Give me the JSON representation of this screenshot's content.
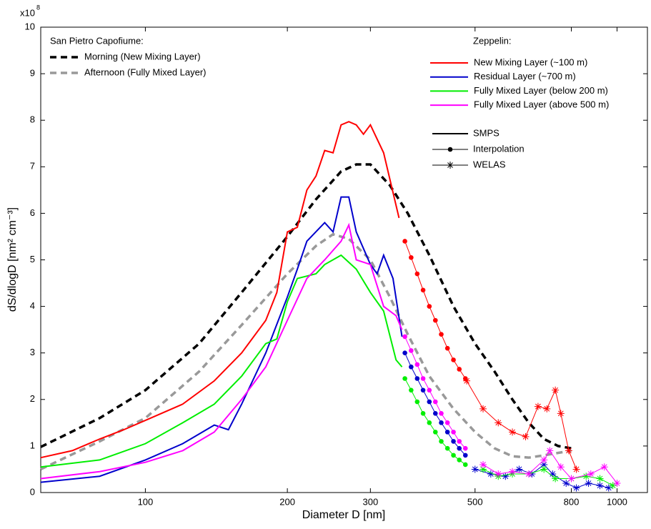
{
  "chart_data": {
    "type": "line",
    "xlabel": "Diameter D [nm]",
    "ylabel": "dS/dlogD [nm² cm⁻³]",
    "y_multiplier": "x10",
    "y_multiplier_exponent": "8",
    "xscale": "log",
    "xlim": [
      60,
      1160
    ],
    "ylim": [
      0,
      10
    ],
    "xticks": [
      100,
      200,
      300,
      500,
      800,
      1000
    ],
    "yticks": [
      0,
      1,
      2,
      3,
      4,
      5,
      6,
      7,
      8,
      9,
      10
    ],
    "legend_titles": [
      "San Pietro Capofiume:",
      "Zeppelin:"
    ],
    "methods": [
      "SMPS",
      "Interpolation",
      "WELAS"
    ],
    "series": [
      {
        "name": "Morning (New Mixing Layer)",
        "color": "#000000",
        "dash": true,
        "legend_group": 0,
        "parts": [
          {
            "x": [
              60,
              80,
              100,
              130,
              160,
              200,
              230,
              260,
              280,
              300,
              330,
              360,
              400,
              450,
              500,
              550,
              600,
              650,
              700,
              750,
              800
            ],
            "values": [
              0.98,
              1.6,
              2.2,
              3.2,
              4.3,
              5.5,
              6.3,
              6.9,
              7.05,
              7.05,
              6.6,
              6.0,
              5.1,
              4.0,
              3.2,
              2.6,
              2.0,
              1.5,
              1.15,
              1.0,
              0.95
            ]
          }
        ]
      },
      {
        "name": "Afternoon (Fully Mixed Layer)",
        "color": "#999999",
        "dash": true,
        "legend_group": 0,
        "parts": [
          {
            "x": [
              60,
              80,
              100,
              130,
              160,
              200,
              230,
              250,
              270,
              300,
              330,
              360,
              400,
              450,
              500,
              550,
              600,
              650,
              700,
              800
            ],
            "values": [
              0.5,
              1.1,
              1.6,
              2.6,
              3.6,
              4.7,
              5.3,
              5.55,
              5.45,
              5.0,
              4.2,
              3.4,
              2.5,
              1.8,
              1.3,
              0.95,
              0.78,
              0.75,
              0.8,
              0.9
            ]
          }
        ]
      },
      {
        "name": "New Mixing Layer (~100 m)",
        "color": "#ff0000",
        "dash": false,
        "legend_group": 1,
        "parts": [
          {
            "x": [
              60,
              70,
              80,
              90,
              100,
              120,
              140,
              160,
              180,
              190,
              200,
              210,
              220,
              230,
              240,
              250,
              260,
              270,
              280,
              290,
              300,
              320,
              345
            ],
            "values": [
              0.75,
              0.9,
              1.15,
              1.35,
              1.55,
              1.9,
              2.4,
              3.0,
              3.7,
              4.3,
              5.6,
              5.7,
              6.5,
              6.8,
              7.35,
              7.3,
              7.9,
              7.97,
              7.9,
              7.7,
              7.9,
              7.3,
              5.9
            ]
          },
          {
            "x": [
              355,
              366,
              377,
              388,
              400,
              412,
              424,
              437,
              450,
              463,
              477
            ],
            "values": [
              5.4,
              5.05,
              4.7,
              4.35,
              4.0,
              3.7,
              3.4,
              3.1,
              2.85,
              2.65,
              2.45
            ]
          },
          {
            "x": [
              480,
              520,
              560,
              600,
              640,
              680,
              710,
              740,
              760,
              790,
              820
            ],
            "values": [
              2.4,
              1.8,
              1.5,
              1.3,
              1.2,
              1.85,
              1.8,
              2.2,
              1.7,
              0.9,
              0.5
            ]
          }
        ]
      },
      {
        "name": "Residual Layer    (~700 m)",
        "color": "#0000cc",
        "dash": false,
        "legend_group": 1,
        "parts": [
          {
            "x": [
              60,
              80,
              100,
              120,
              140,
              150,
              160,
              180,
              200,
              210,
              220,
              240,
              250,
              260,
              270,
              280,
              300,
              310,
              320,
              335,
              350
            ],
            "values": [
              0.22,
              0.35,
              0.7,
              1.05,
              1.45,
              1.35,
              1.9,
              3.0,
              4.2,
              4.8,
              5.4,
              5.8,
              5.6,
              6.35,
              6.35,
              5.6,
              4.9,
              4.7,
              5.1,
              4.6,
              3.35
            ]
          },
          {
            "x": [
              355,
              366,
              377,
              388,
              400,
              412,
              424,
              437,
              450,
              463,
              477
            ],
            "values": [
              3.0,
              2.7,
              2.45,
              2.2,
              1.95,
              1.7,
              1.5,
              1.3,
              1.1,
              0.95,
              0.8
            ]
          },
          {
            "x": [
              500,
              540,
              580,
              620,
              660,
              700,
              730,
              780,
              820,
              870,
              920,
              960
            ],
            "values": [
              0.5,
              0.4,
              0.35,
              0.5,
              0.4,
              0.6,
              0.4,
              0.2,
              0.1,
              0.2,
              0.15,
              0.1
            ]
          }
        ]
      },
      {
        "name": "Fully Mixed Layer (below 200 m)",
        "color": "#00ee00",
        "dash": false,
        "legend_group": 1,
        "parts": [
          {
            "x": [
              60,
              80,
              100,
              120,
              140,
              160,
              180,
              190,
              200,
              210,
              230,
              240,
              260,
              280,
              300,
              320,
              340,
              350
            ],
            "values": [
              0.55,
              0.7,
              1.05,
              1.5,
              1.9,
              2.5,
              3.2,
              3.3,
              4.1,
              4.6,
              4.7,
              4.9,
              5.1,
              4.8,
              4.3,
              3.9,
              2.85,
              2.7
            ]
          },
          {
            "x": [
              355,
              366,
              377,
              388,
              400,
              412,
              424,
              437,
              450,
              463,
              477
            ],
            "values": [
              2.45,
              2.2,
              1.95,
              1.7,
              1.5,
              1.3,
              1.1,
              0.95,
              0.8,
              0.7,
              0.6
            ]
          },
          {
            "x": [
              520,
              560,
              600,
              650,
              700,
              740,
              800,
              860,
              920,
              980
            ],
            "values": [
              0.5,
              0.35,
              0.4,
              0.4,
              0.5,
              0.3,
              0.3,
              0.35,
              0.3,
              0.15
            ]
          }
        ]
      },
      {
        "name": "Fully Mixed Layer (above 500 m)",
        "color": "#ff00ff",
        "dash": false,
        "legend_group": 1,
        "parts": [
          {
            "x": [
              60,
              80,
              100,
              120,
              140,
              160,
              180,
              200,
              220,
              240,
              260,
              270,
              280,
              300,
              320,
              340,
              350
            ],
            "values": [
              0.3,
              0.45,
              0.65,
              0.9,
              1.3,
              2.0,
              2.7,
              3.7,
              4.6,
              5.0,
              5.4,
              5.75,
              5.0,
              4.9,
              4.0,
              3.8,
              3.5
            ]
          },
          {
            "x": [
              355,
              366,
              377,
              388,
              400,
              412,
              424,
              437,
              450,
              463,
              477
            ],
            "values": [
              3.35,
              3.05,
              2.75,
              2.45,
              2.2,
              1.95,
              1.7,
              1.5,
              1.3,
              1.1,
              0.95
            ]
          },
          {
            "x": [
              520,
              560,
              600,
              650,
              700,
              720,
              760,
              800,
              880,
              940,
              1000
            ],
            "values": [
              0.6,
              0.4,
              0.45,
              0.4,
              0.7,
              0.9,
              0.55,
              0.3,
              0.4,
              0.55,
              0.2
            ]
          }
        ]
      }
    ]
  }
}
